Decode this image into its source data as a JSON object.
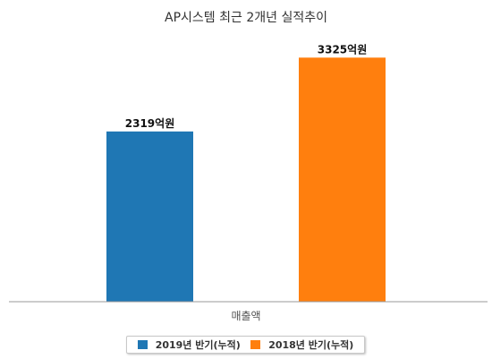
{
  "chart_data": {
    "type": "bar",
    "title": "AP시스템 최근 2개년 실적추이",
    "categories": [
      "매출액"
    ],
    "series": [
      {
        "name": "2019년 반기(누적)",
        "values": [
          2319
        ],
        "label": "2319억원",
        "color": "#1f77b4"
      },
      {
        "name": "2018년 반기(누적)",
        "values": [
          3325
        ],
        "label": "3325억원",
        "color": "#ff7f0e"
      }
    ],
    "xlabel": "",
    "ylabel": "",
    "ylim": [
      0,
      4000
    ],
    "grid": false,
    "legend_position": "bottom"
  }
}
